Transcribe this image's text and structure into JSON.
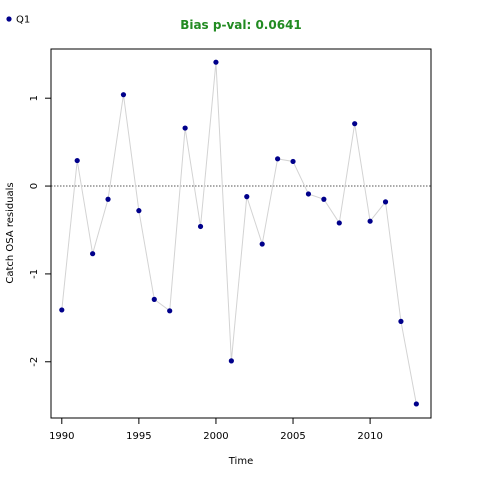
{
  "chart_data": {
    "type": "line",
    "title": "Bias p-val: 0.0641",
    "xlabel": "Time",
    "ylabel": "Catch OSA residuals",
    "xlim": [
      1989.3,
      2013.95
    ],
    "ylim": [
      -2.64,
      1.56
    ],
    "x_ticks": [
      1990,
      1995,
      2000,
      2005,
      2010
    ],
    "y_ticks": [
      -2,
      -1,
      0,
      1
    ],
    "reference_line": 0,
    "legend": {
      "position": "top-left",
      "entries": [
        "Q1"
      ]
    },
    "series": [
      {
        "name": "Q1",
        "x": [
          1990,
          1991,
          1992,
          1993,
          1994,
          1995,
          1996,
          1997,
          1998,
          1999,
          2000,
          2001,
          2002,
          2003,
          2004,
          2005,
          2006,
          2007,
          2008,
          2009,
          2010,
          2011,
          2012,
          2013
        ],
        "values": [
          -1.41,
          0.29,
          -0.77,
          -0.15,
          1.04,
          -0.28,
          -1.29,
          -1.42,
          0.66,
          -0.46,
          1.41,
          -1.99,
          -0.12,
          -0.66,
          0.31,
          0.28,
          -0.09,
          -0.15,
          -0.42,
          0.71,
          -0.4,
          -0.18,
          -1.54,
          -2.48
        ]
      }
    ],
    "colors": {
      "title": "#228b22",
      "points": "#00008b",
      "line": "#d3d3d3",
      "reference": "#555555"
    }
  }
}
